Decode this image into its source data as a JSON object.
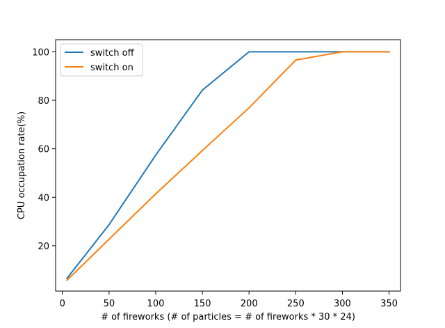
{
  "chart_data": {
    "type": "line",
    "title": "",
    "xlabel": "# of fireworks (# of particles = # of fireworks * 30 * 24)",
    "ylabel": "CPU occupation rate(%)",
    "xlim": [
      -7.25,
      362.25
    ],
    "ylim": [
      1.3,
      105.0
    ],
    "xticks": [
      0,
      50,
      100,
      150,
      200,
      250,
      300,
      350
    ],
    "yticks": [
      20,
      40,
      60,
      80,
      100
    ],
    "grid": false,
    "legend_position": "upper-left",
    "series": [
      {
        "name": "switch off",
        "color": "#1f77b4",
        "x": [
          5,
          50,
          100,
          150,
          200,
          300,
          350
        ],
        "y": [
          6.6,
          28.7,
          57.4,
          84.2,
          100,
          100,
          100
        ]
      },
      {
        "name": "switch on",
        "color": "#ff7f0e",
        "x": [
          5,
          50,
          100,
          150,
          200,
          250,
          300,
          350
        ],
        "y": [
          5.8,
          22.7,
          41.4,
          59.3,
          76.9,
          96.6,
          100,
          100
        ]
      }
    ]
  }
}
